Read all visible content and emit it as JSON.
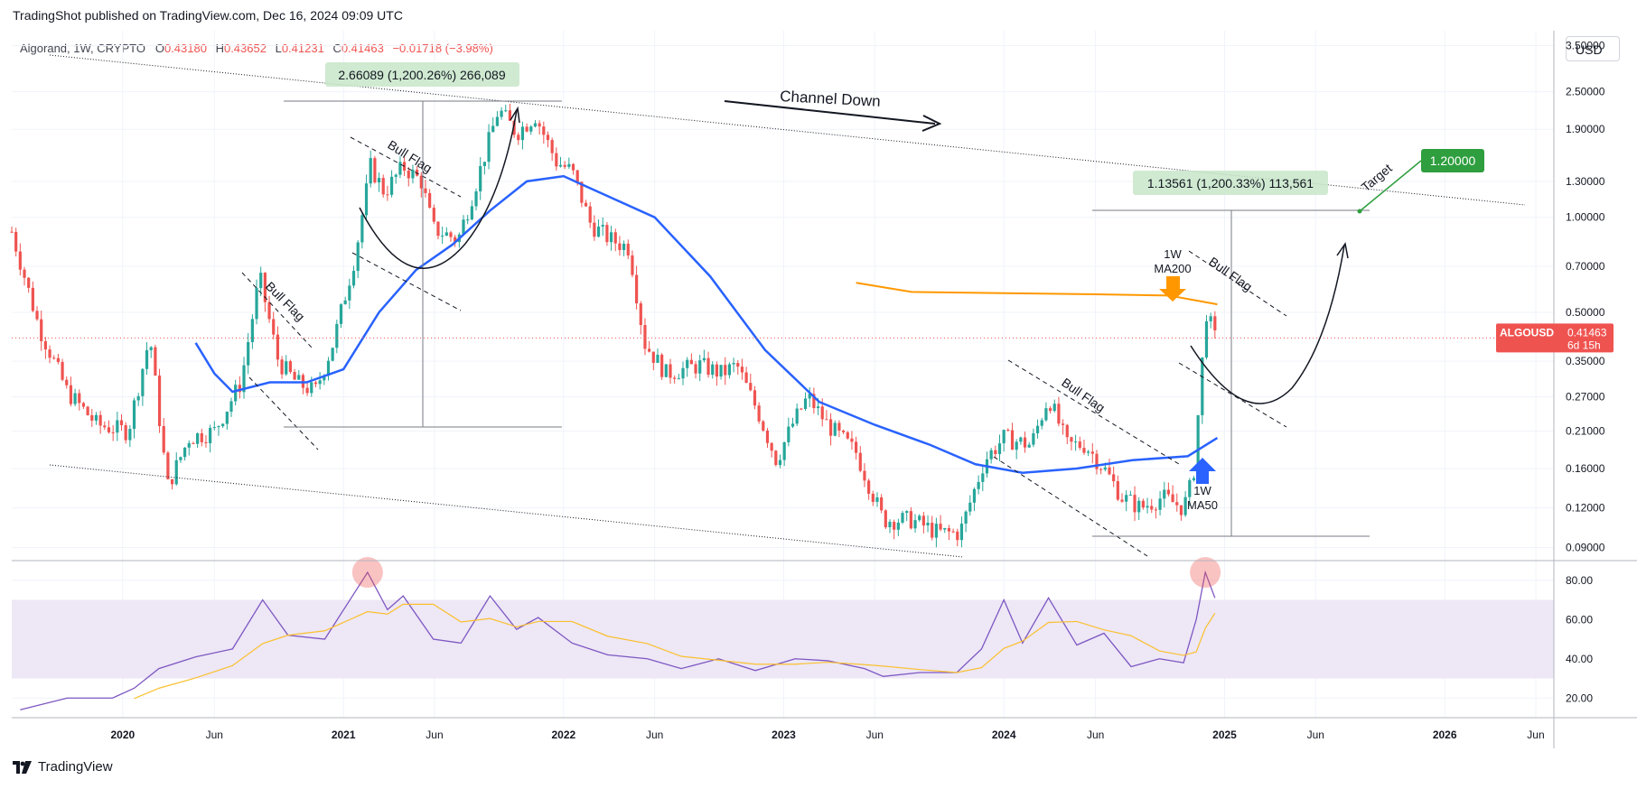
{
  "header": {
    "published": "TradingShot published on TradingView.com, Dec 16, 2024 09:09 UTC"
  },
  "symbol": {
    "name": "Algorand, 1W, CRYPTO",
    "open_label": "O",
    "open": "0.43180",
    "high_label": "H",
    "high": "0.43652",
    "low_label": "L",
    "low": "0.41231",
    "close_label": "C",
    "close": "0.41463",
    "change": "−0.01718 (−3.98%)"
  },
  "currency_button": "USD",
  "price_tag": {
    "ticker": "ALGOUSD",
    "price": "0.41463",
    "countdown": "6d 15h"
  },
  "footer": {
    "brand": "TradingView"
  },
  "colors": {
    "up": "#26a69a",
    "down": "#ef5350",
    "ma50": "#2962ff",
    "ma200": "#ff9800",
    "rsi": "#7e57c2",
    "rsi_ma": "#fbc02d",
    "rsi_band": "#ede7f6",
    "target": "#2e9e3e"
  },
  "annotations": {
    "channel": "Channel Down",
    "bull_flag_1": "Bull Flag",
    "bull_flag_2": "Bull Flag",
    "bull_flag_3": "Bull Flag",
    "bull_flag_4": "Bull Flag",
    "measure_1": "2.66089 (1,200.26%) 266,089",
    "measure_2": "1.13561 (1,200.33%) 113,561",
    "target_label": "Target",
    "target_value": "1.20000",
    "ma200_label_1": "1W",
    "ma200_label_2": "MA200",
    "ma50_label_1": "1W",
    "ma50_label_2": "MA50"
  },
  "chart_data": {
    "type": "candlestick",
    "symbol": "ALGOUSD",
    "timeframe": "1W",
    "y_scale": "log",
    "ylim": [
      0.085,
      3.8
    ],
    "y_ticks": [
      "3.50000",
      "2.50000",
      "1.90000",
      "1.30000",
      "1.00000",
      "0.70000",
      "0.50000",
      "0.35000",
      "0.27000",
      "0.21000",
      "0.16000",
      "0.12000",
      "0.09000"
    ],
    "x_ticks": [
      "2020",
      "Jun",
      "2021",
      "Jun",
      "2022",
      "Jun",
      "2023",
      "Jun",
      "2024",
      "Jun",
      "2025",
      "Jun",
      "2026",
      "Jun"
    ],
    "x_range": [
      "2019-07-01",
      "2026-07-01"
    ],
    "price_path": [
      [
        "2019-07-01",
        0.9
      ],
      [
        "2019-08-15",
        0.45
      ],
      [
        "2019-10-01",
        0.28
      ],
      [
        "2019-11-20",
        0.22
      ],
      [
        "2020-01-10",
        0.21
      ],
      [
        "2020-02-15",
        0.42
      ],
      [
        "2020-03-15",
        0.14
      ],
      [
        "2020-04-20",
        0.2
      ],
      [
        "2020-06-01",
        0.21
      ],
      [
        "2020-07-15",
        0.3
      ],
      [
        "2020-08-15",
        0.65
      ],
      [
        "2020-09-15",
        0.35
      ],
      [
        "2020-10-15",
        0.3
      ],
      [
        "2020-11-15",
        0.28
      ],
      [
        "2020-12-15",
        0.4
      ],
      [
        "2021-01-20",
        0.75
      ],
      [
        "2021-02-15",
        1.45
      ],
      [
        "2021-03-10",
        1.2
      ],
      [
        "2021-04-10",
        1.45
      ],
      [
        "2021-05-10",
        1.3
      ],
      [
        "2021-05-30",
        0.92
      ],
      [
        "2021-07-10",
        0.85
      ],
      [
        "2021-08-10",
        1.3
      ],
      [
        "2021-09-15",
        2.2
      ],
      [
        "2021-10-15",
        1.85
      ],
      [
        "2021-11-15",
        2.1
      ],
      [
        "2021-12-20",
        1.5
      ],
      [
        "2022-01-15",
        1.4
      ],
      [
        "2022-02-15",
        0.95
      ],
      [
        "2022-03-20",
        0.85
      ],
      [
        "2022-04-20",
        0.8
      ],
      [
        "2022-05-15",
        0.4
      ],
      [
        "2022-06-20",
        0.32
      ],
      [
        "2022-08-15",
        0.34
      ],
      [
        "2022-09-20",
        0.32
      ],
      [
        "2022-10-15",
        0.34
      ],
      [
        "2022-11-20",
        0.24
      ],
      [
        "2022-12-20",
        0.17
      ],
      [
        "2023-01-15",
        0.22
      ],
      [
        "2023-02-10",
        0.27
      ],
      [
        "2023-03-15",
        0.22
      ],
      [
        "2023-05-01",
        0.18
      ],
      [
        "2023-06-15",
        0.11
      ],
      [
        "2023-08-01",
        0.11
      ],
      [
        "2023-09-15",
        0.1
      ],
      [
        "2023-10-20",
        0.1
      ],
      [
        "2023-11-30",
        0.17
      ],
      [
        "2024-01-01",
        0.2
      ],
      [
        "2024-02-15",
        0.19
      ],
      [
        "2024-03-15",
        0.27
      ],
      [
        "2024-04-15",
        0.19
      ],
      [
        "2024-05-15",
        0.19
      ],
      [
        "2024-06-15",
        0.16
      ],
      [
        "2024-07-15",
        0.13
      ],
      [
        "2024-08-15",
        0.12
      ],
      [
        "2024-09-20",
        0.13
      ],
      [
        "2024-10-25",
        0.12
      ],
      [
        "2024-11-10",
        0.15
      ],
      [
        "2024-11-25",
        0.35
      ],
      [
        "2024-12-02",
        0.5
      ],
      [
        "2024-12-16",
        0.41463
      ]
    ],
    "series": [
      {
        "name": "1W MA50",
        "points": [
          [
            "2020-05-01",
            0.4
          ],
          [
            "2020-06-01",
            0.32
          ],
          [
            "2020-07-01",
            0.28
          ],
          [
            "2020-09-01",
            0.3
          ],
          [
            "2020-11-01",
            0.3
          ],
          [
            "2021-01-01",
            0.33
          ],
          [
            "2021-03-01",
            0.5
          ],
          [
            "2021-05-01",
            0.68
          ],
          [
            "2021-07-01",
            0.82
          ],
          [
            "2021-09-01",
            1.05
          ],
          [
            "2021-11-01",
            1.3
          ],
          [
            "2022-01-01",
            1.35
          ],
          [
            "2022-03-01",
            1.2
          ],
          [
            "2022-06-01",
            1.0
          ],
          [
            "2022-09-01",
            0.65
          ],
          [
            "2022-12-01",
            0.38
          ],
          [
            "2023-03-01",
            0.26
          ],
          [
            "2023-06-01",
            0.22
          ],
          [
            "2023-09-01",
            0.19
          ],
          [
            "2023-11-15",
            0.165
          ],
          [
            "2024-02-01",
            0.155
          ],
          [
            "2024-05-01",
            0.16
          ],
          [
            "2024-08-01",
            0.17
          ],
          [
            "2024-11-01",
            0.175
          ],
          [
            "2024-12-20",
            0.2
          ]
        ]
      },
      {
        "name": "1W MA200",
        "points": [
          [
            "2023-05-01",
            0.62
          ],
          [
            "2023-08-01",
            0.58
          ],
          [
            "2024-01-01",
            0.575
          ],
          [
            "2024-06-01",
            0.57
          ],
          [
            "2024-10-01",
            0.565
          ],
          [
            "2024-12-20",
            0.53
          ]
        ]
      }
    ],
    "rsi": {
      "ylim": [
        10,
        90
      ],
      "y_ticks": [
        "80.00",
        "60.00",
        "40.00",
        "20.00"
      ],
      "band": [
        30,
        70
      ],
      "values": [
        [
          "2019-07-15",
          14
        ],
        [
          "2019-10-01",
          20
        ],
        [
          "2019-12-15",
          20
        ],
        [
          "2020-01-20",
          25
        ],
        [
          "2020-03-01",
          35
        ],
        [
          "2020-05-01",
          41
        ],
        [
          "2020-07-01",
          45
        ],
        [
          "2020-08-20",
          70
        ],
        [
          "2020-10-01",
          52
        ],
        [
          "2020-12-01",
          50
        ],
        [
          "2021-02-10",
          84
        ],
        [
          "2021-03-15",
          65
        ],
        [
          "2021-04-10",
          72
        ],
        [
          "2021-05-30",
          50
        ],
        [
          "2021-07-15",
          48
        ],
        [
          "2021-09-01",
          72
        ],
        [
          "2021-10-15",
          55
        ],
        [
          "2021-11-20",
          61
        ],
        [
          "2022-01-15",
          48
        ],
        [
          "2022-03-15",
          42
        ],
        [
          "2022-05-20",
          40
        ],
        [
          "2022-07-15",
          35
        ],
        [
          "2022-09-15",
          40
        ],
        [
          "2022-11-15",
          34
        ],
        [
          "2023-01-20",
          40
        ],
        [
          "2023-03-15",
          39
        ],
        [
          "2023-05-15",
          35
        ],
        [
          "2023-06-15",
          31
        ],
        [
          "2023-08-15",
          33
        ],
        [
          "2023-10-15",
          33
        ],
        [
          "2023-11-25",
          45
        ],
        [
          "2024-01-01",
          70
        ],
        [
          "2024-02-01",
          48
        ],
        [
          "2024-03-15",
          71
        ],
        [
          "2024-05-01",
          47
        ],
        [
          "2024-06-15",
          53
        ],
        [
          "2024-07-30",
          36
        ],
        [
          "2024-09-15",
          40
        ],
        [
          "2024-10-25",
          38
        ],
        [
          "2024-11-15",
          60
        ],
        [
          "2024-11-30",
          84
        ],
        [
          "2024-12-16",
          71
        ]
      ]
    }
  }
}
